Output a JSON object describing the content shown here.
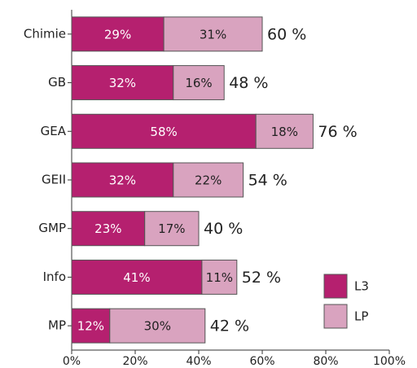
{
  "chart_data": {
    "type": "stacked-barh",
    "categories": [
      "Chimie",
      "GB",
      "GEA",
      "GEII",
      "GMP",
      "Info",
      "MP"
    ],
    "series": [
      {
        "name": "L3",
        "color": "#b5206f",
        "values": [
          29,
          32,
          58,
          32,
          23,
          41,
          12
        ],
        "value_labels": [
          "29%",
          "32%",
          "58%",
          "32%",
          "23%",
          "41%",
          "12%"
        ]
      },
      {
        "name": "LP",
        "color": "#d9a3bf",
        "values": [
          31,
          16,
          18,
          22,
          17,
          11,
          30
        ],
        "value_labels": [
          "31%",
          "16%",
          "18%",
          "22%",
          "17%",
          "11%",
          "30%"
        ]
      }
    ],
    "totals": [
      60,
      48,
      76,
      54,
      40,
      52,
      42
    ],
    "total_labels": [
      "60 %",
      "48 %",
      "76 %",
      "54 %",
      "40 %",
      "52 %",
      "42 %"
    ],
    "xlim": [
      0,
      100
    ],
    "xticks": [
      {
        "value": 0,
        "label": "0%"
      },
      {
        "value": 20,
        "label": "20%"
      },
      {
        "value": 40,
        "label": "40%"
      },
      {
        "value": 60,
        "label": "60%"
      },
      {
        "value": 80,
        "label": "80%"
      },
      {
        "value": 100,
        "label": "100%"
      }
    ],
    "legend": "lower right"
  }
}
